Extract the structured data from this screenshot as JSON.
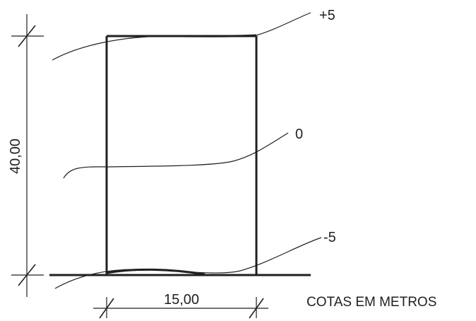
{
  "contours": [
    {
      "label": "+5"
    },
    {
      "label": "0"
    },
    {
      "label": "-5"
    }
  ],
  "dimensions": {
    "height": "40,00",
    "width": "15,00"
  },
  "note": "COTAS EM METROS"
}
